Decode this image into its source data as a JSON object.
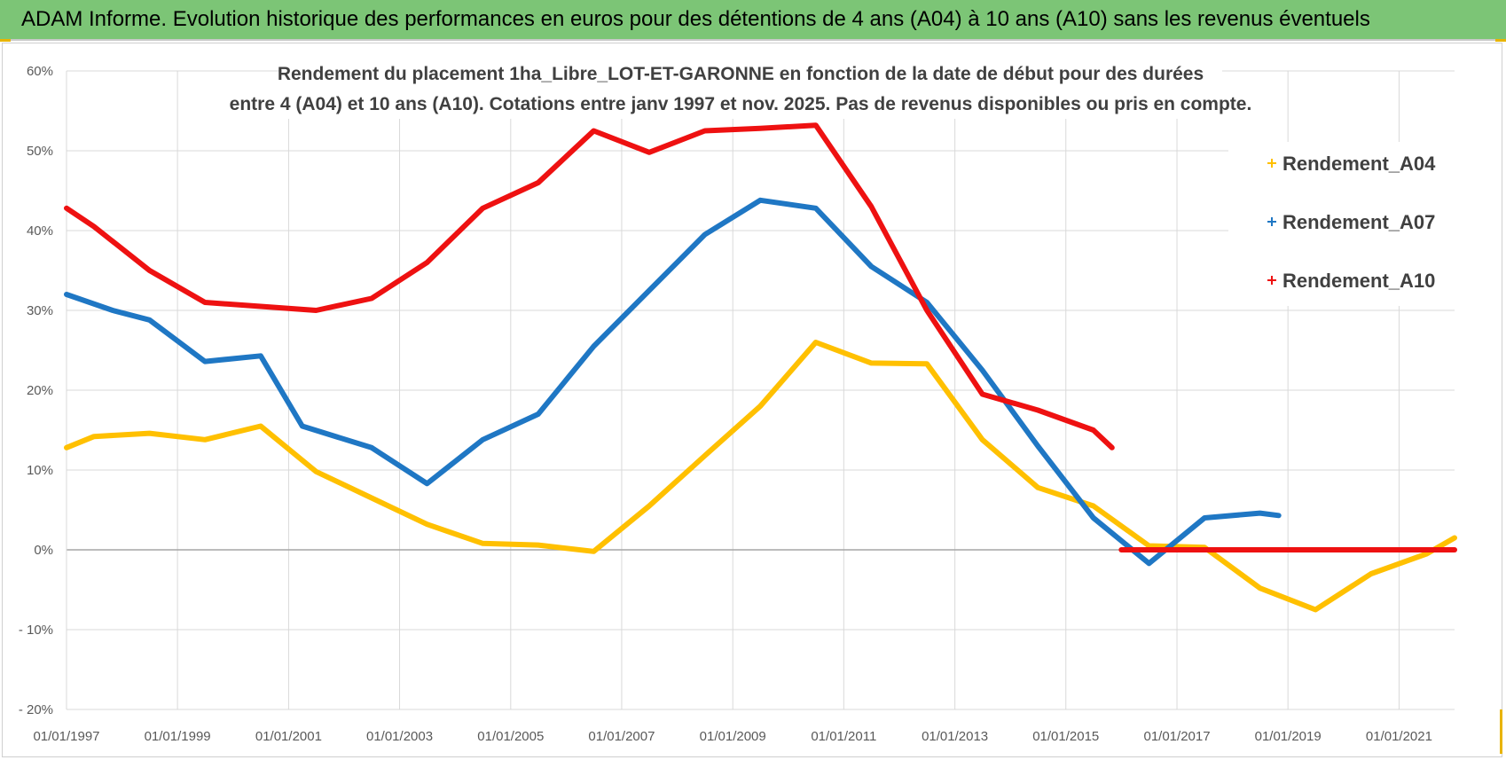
{
  "banner": {
    "title": "ADAM Informe. Evolution historique des performances en euros pour des détentions de 4 ans (A04) à 10 ans (A10) sans les revenus éventuels"
  },
  "chart_data": {
    "type": "line",
    "title_lines": [
      "Rendement du placement 1ha_Libre_LOT-ET-GARONNE en fonction de la date de début pour des durées",
      "entre 4 (A04) et 10 ans (A10).  Cotations entre janv 1997 et nov. 2025. Pas de revenus disponibles ou pris en compte."
    ],
    "xlabel": "",
    "ylabel": "",
    "x_range": [
      "1997-01-01",
      "2022-01-01"
    ],
    "y_range": [
      -20,
      60
    ],
    "x_ticks": [
      "01/01/1997",
      "01/01/1999",
      "01/01/2001",
      "01/01/2003",
      "01/01/2005",
      "01/01/2007",
      "01/01/2009",
      "01/01/2011",
      "01/01/2013",
      "01/01/2015",
      "01/01/2017",
      "01/01/2019",
      "01/01/2021"
    ],
    "y_ticks": [
      {
        "value": 60,
        "label": "60%"
      },
      {
        "value": 50,
        "label": "50%"
      },
      {
        "value": 40,
        "label": "40%"
      },
      {
        "value": 30,
        "label": "30%"
      },
      {
        "value": 20,
        "label": "20%"
      },
      {
        "value": 10,
        "label": "10%"
      },
      {
        "value": 0,
        "label": "0%"
      },
      {
        "value": -10,
        "label": "- 10%"
      },
      {
        "value": -20,
        "label": "- 20%"
      }
    ],
    "grid": true,
    "legend_position": "top-right",
    "series": [
      {
        "name": "Rendement_A04",
        "color": "#ffc000",
        "points": [
          [
            "1997-01-01",
            12.8
          ],
          [
            "1997-07-01",
            14.2
          ],
          [
            "1998-07-01",
            14.6
          ],
          [
            "1999-07-01",
            13.8
          ],
          [
            "2000-07-01",
            15.5
          ],
          [
            "2001-07-01",
            9.8
          ],
          [
            "2002-07-01",
            6.5
          ],
          [
            "2003-07-01",
            3.2
          ],
          [
            "2004-07-01",
            0.8
          ],
          [
            "2005-07-01",
            0.6
          ],
          [
            "2006-07-01",
            -0.2
          ],
          [
            "2007-07-01",
            5.5
          ],
          [
            "2008-07-01",
            11.8
          ],
          [
            "2009-07-01",
            18.0
          ],
          [
            "2010-07-01",
            26.0
          ],
          [
            "2011-07-01",
            23.4
          ],
          [
            "2012-07-01",
            23.3
          ],
          [
            "2013-07-01",
            13.8
          ],
          [
            "2014-07-01",
            7.8
          ],
          [
            "2015-07-01",
            5.5
          ],
          [
            "2016-07-01",
            0.5
          ],
          [
            "2017-07-01",
            0.3
          ],
          [
            "2018-07-01",
            -4.8
          ],
          [
            "2019-07-01",
            -7.5
          ],
          [
            "2020-07-01",
            -3.0
          ],
          [
            "2021-07-01",
            -0.5
          ],
          [
            "2022-01-01",
            1.5
          ]
        ]
      },
      {
        "name": "Rendement_A07",
        "color": "#1f77c4",
        "points": [
          [
            "1997-01-01",
            32.0
          ],
          [
            "1997-11-01",
            30.0
          ],
          [
            "1998-07-01",
            28.8
          ],
          [
            "1999-07-01",
            23.6
          ],
          [
            "2000-07-01",
            24.3
          ],
          [
            "2001-04-01",
            15.5
          ],
          [
            "2002-07-01",
            12.8
          ],
          [
            "2003-07-01",
            8.3
          ],
          [
            "2004-07-01",
            13.8
          ],
          [
            "2005-07-01",
            17.0
          ],
          [
            "2006-07-01",
            25.5
          ],
          [
            "2007-07-01",
            32.5
          ],
          [
            "2008-07-01",
            39.5
          ],
          [
            "2009-07-01",
            43.8
          ],
          [
            "2010-07-01",
            42.8
          ],
          [
            "2011-07-01",
            35.5
          ],
          [
            "2012-07-01",
            31.0
          ],
          [
            "2013-07-01",
            22.5
          ],
          [
            "2014-07-01",
            13.0
          ],
          [
            "2015-07-01",
            4.0
          ],
          [
            "2016-07-01",
            -1.7
          ],
          [
            "2017-07-01",
            4.0
          ],
          [
            "2018-07-01",
            4.6
          ],
          [
            "2018-11-01",
            4.3
          ]
        ]
      },
      {
        "name": "Rendement_A10",
        "color": "#ee1111",
        "points": [
          [
            "1997-01-01",
            42.8
          ],
          [
            "1997-07-01",
            40.5
          ],
          [
            "1998-07-01",
            35.0
          ],
          [
            "1999-07-01",
            31.0
          ],
          [
            "2000-07-01",
            30.5
          ],
          [
            "2001-07-01",
            30.0
          ],
          [
            "2002-07-01",
            31.5
          ],
          [
            "2003-07-01",
            36.0
          ],
          [
            "2004-07-01",
            42.8
          ],
          [
            "2005-07-01",
            46.0
          ],
          [
            "2006-07-01",
            52.5
          ],
          [
            "2007-07-01",
            49.8
          ],
          [
            "2008-07-01",
            52.5
          ],
          [
            "2009-07-01",
            52.8
          ],
          [
            "2010-07-01",
            53.2
          ],
          [
            "2011-07-01",
            43.0
          ],
          [
            "2012-07-01",
            30.0
          ],
          [
            "2013-07-01",
            19.5
          ],
          [
            "2014-07-01",
            17.5
          ],
          [
            "2015-07-01",
            15.0
          ],
          [
            "2015-11-01",
            12.8
          ]
        ]
      },
      {
        "name": "",
        "color": "#ee1111",
        "points": [
          [
            "2016-01-01",
            0.0
          ],
          [
            "2022-01-01",
            0.0
          ]
        ]
      }
    ]
  }
}
